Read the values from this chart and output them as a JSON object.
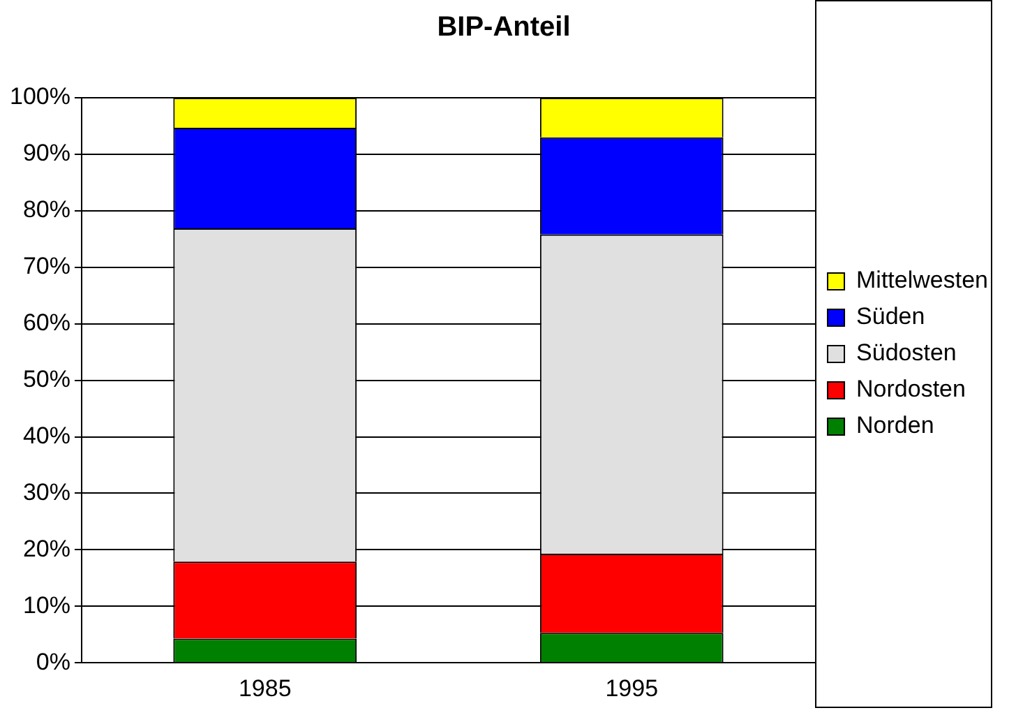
{
  "chart_data": {
    "type": "bar",
    "title": "BIP-Anteil",
    "categories": [
      "1985",
      "1995"
    ],
    "stacked": true,
    "series": [
      {
        "name": "Norden",
        "color": "#008000",
        "values": [
          4.3,
          5.3
        ]
      },
      {
        "name": "Nordosten",
        "color": "#ff0000",
        "values": [
          13.6,
          14
        ]
      },
      {
        "name": "Südosten",
        "color": "#e0e0e0",
        "values": [
          59,
          56.5
        ]
      },
      {
        "name": "Süden",
        "color": "#0000ff",
        "values": [
          17.8,
          17.2
        ]
      },
      {
        "name": "Mittelwesten",
        "color": "#ffff00",
        "values": [
          5.3,
          7
        ]
      }
    ],
    "ylim": [
      0,
      100
    ],
    "yticks": [
      {
        "value": 0,
        "label": "0%"
      },
      {
        "value": 10,
        "label": "10%"
      },
      {
        "value": 20,
        "label": "20%"
      },
      {
        "value": 30,
        "label": "30%"
      },
      {
        "value": 40,
        "label": "40%"
      },
      {
        "value": 50,
        "label": "50%"
      },
      {
        "value": 60,
        "label": "60%"
      },
      {
        "value": 70,
        "label": "70%"
      },
      {
        "value": 80,
        "label": "80%"
      },
      {
        "value": 90,
        "label": "90%"
      },
      {
        "value": 100,
        "label": "100%"
      }
    ],
    "grid": "y",
    "legend": "right"
  }
}
